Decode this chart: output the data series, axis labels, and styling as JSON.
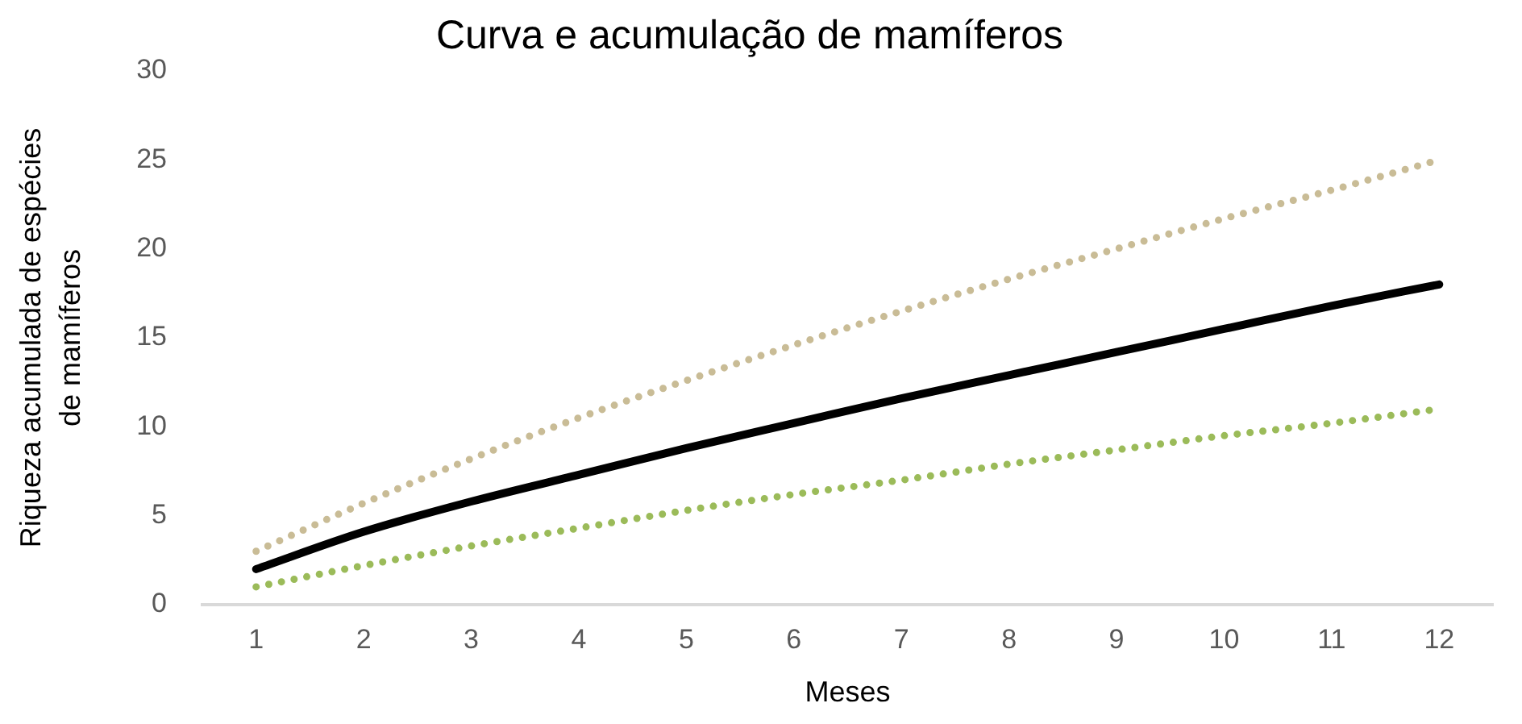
{
  "chart_data": {
    "type": "line",
    "title": "Curva e acumulação de mamíferos",
    "xlabel": "Meses",
    "ylabel": "Riqueza acumulada de espécies de mamíferos",
    "x": [
      1,
      2,
      3,
      4,
      5,
      6,
      7,
      8,
      9,
      10,
      11,
      12
    ],
    "xlim": [
      0.5,
      12.5
    ],
    "xticks": [
      1,
      2,
      3,
      4,
      5,
      6,
      7,
      8,
      9,
      10,
      11,
      12
    ],
    "series": [
      {
        "color": "#c9bc96",
        "line_style": "dotted",
        "values": [
          3.0,
          5.7,
          8.2,
          10.5,
          12.6,
          14.6,
          16.5,
          18.3,
          20.0,
          21.7,
          23.3,
          25.0
        ]
      },
      {
        "color": "#000000",
        "line_style": "solid",
        "values": [
          2.0,
          4.1,
          5.8,
          7.3,
          8.8,
          10.2,
          11.6,
          12.9,
          14.2,
          15.5,
          16.8,
          18.0
        ]
      },
      {
        "color": "#9bbb59",
        "line_style": "dotted",
        "values": [
          1.0,
          2.2,
          3.3,
          4.3,
          5.3,
          6.2,
          7.0,
          7.9,
          8.7,
          9.5,
          10.2,
          11.0
        ]
      }
    ],
    "ylim": [
      0,
      30
    ],
    "yticks": [
      0,
      5,
      10,
      15,
      20,
      25,
      30
    ],
    "grid": false,
    "legend": false,
    "marker": "none"
  }
}
